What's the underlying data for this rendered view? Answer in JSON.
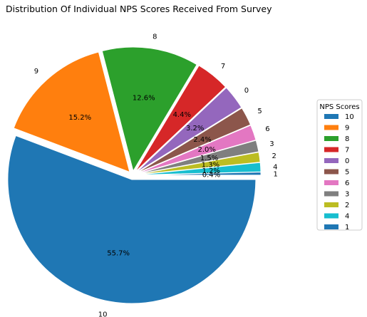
{
  "chart_data": {
    "type": "pie",
    "title": "Distribution Of Individual NPS Scores Received From Survey",
    "labels": [
      "10",
      "9",
      "8",
      "7",
      "0",
      "5",
      "6",
      "3",
      "2",
      "4",
      "1"
    ],
    "values": [
      55.7,
      15.2,
      12.6,
      4.4,
      3.2,
      2.4,
      2.0,
      1.5,
      1.3,
      1.2,
      0.4
    ],
    "value_labels": [
      "55.7%",
      "15.2%",
      "12.6%",
      "4.4%",
      "3.2%",
      "2.4%",
      "2.0%",
      "1.5%",
      "1.3%",
      "1.2%",
      "0.4%"
    ],
    "colors": [
      "#1f77b4",
      "#ff7f0e",
      "#2ca02c",
      "#d62728",
      "#9467bd",
      "#8c564b",
      "#e377c2",
      "#7f7f7f",
      "#bcbd22",
      "#17becf",
      "#1f77b4"
    ],
    "start_angle_deg": 0,
    "direction": "clockwise",
    "exploded": true,
    "legend": {
      "title": "NPS Scores",
      "placement": "right",
      "entries": [
        "10",
        "9",
        "8",
        "7",
        "0",
        "5",
        "6",
        "3",
        "2",
        "4",
        "1"
      ]
    }
  }
}
